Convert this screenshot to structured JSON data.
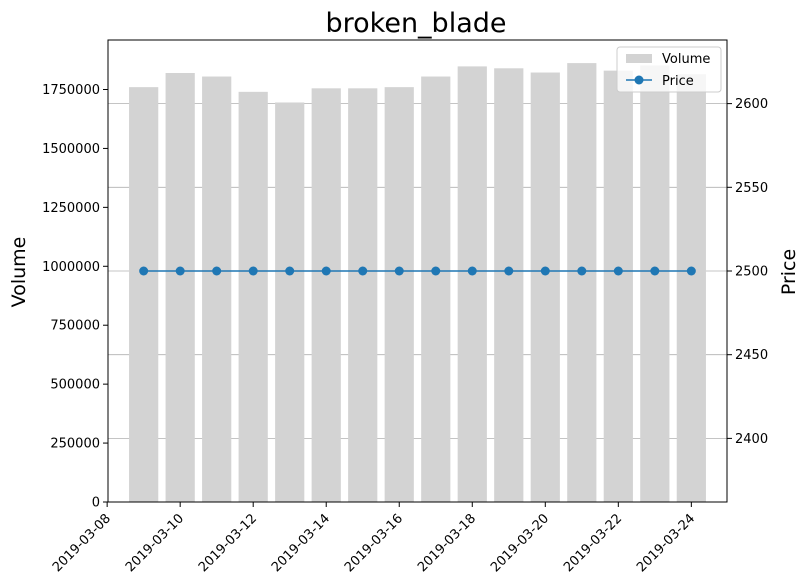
{
  "chart_data": {
    "type": "bar+line",
    "title": "broken_blade",
    "ylabel_left": "Volume",
    "ylabel_right": "Price",
    "x": [
      "2019-03-09",
      "2019-03-10",
      "2019-03-11",
      "2019-03-12",
      "2019-03-13",
      "2019-03-14",
      "2019-03-15",
      "2019-03-16",
      "2019-03-17",
      "2019-03-18",
      "2019-03-19",
      "2019-03-20",
      "2019-03-21",
      "2019-03-22",
      "2019-03-23",
      "2019-03-24"
    ],
    "x_tick_labels": [
      "2019-03-08",
      "2019-03-10",
      "2019-03-12",
      "2019-03-14",
      "2019-03-16",
      "2019-03-18",
      "2019-03-20",
      "2019-03-22",
      "2019-03-24"
    ],
    "series": [
      {
        "name": "Volume",
        "type": "bar",
        "axis": "left",
        "color": "#d3d3d3",
        "values": [
          1760000,
          1820000,
          1805000,
          1740000,
          1695000,
          1755000,
          1755000,
          1760000,
          1805000,
          1848000,
          1840000,
          1822000,
          1862000,
          1830000,
          1852000,
          1815000
        ]
      },
      {
        "name": "Price",
        "type": "line",
        "axis": "right",
        "color": "#1f77b4",
        "values": [
          2500,
          2500,
          2500,
          2500,
          2500,
          2500,
          2500,
          2500,
          2500,
          2500,
          2500,
          2500,
          2500,
          2500,
          2500,
          2500
        ]
      }
    ],
    "ylim_left": [
      0,
      1960000
    ],
    "yticks_left": [
      "0",
      "250000",
      "500000",
      "750000",
      "1000000",
      "1250000",
      "1500000",
      "1750000"
    ],
    "ylim_right": [
      2362,
      2638
    ],
    "yticks_right": [
      "2400",
      "2450",
      "2500",
      "2550",
      "2600"
    ],
    "grid": "horizontal lines on right axis",
    "legend": {
      "placement": "top-right",
      "entries": [
        "Volume",
        "Price"
      ]
    }
  }
}
